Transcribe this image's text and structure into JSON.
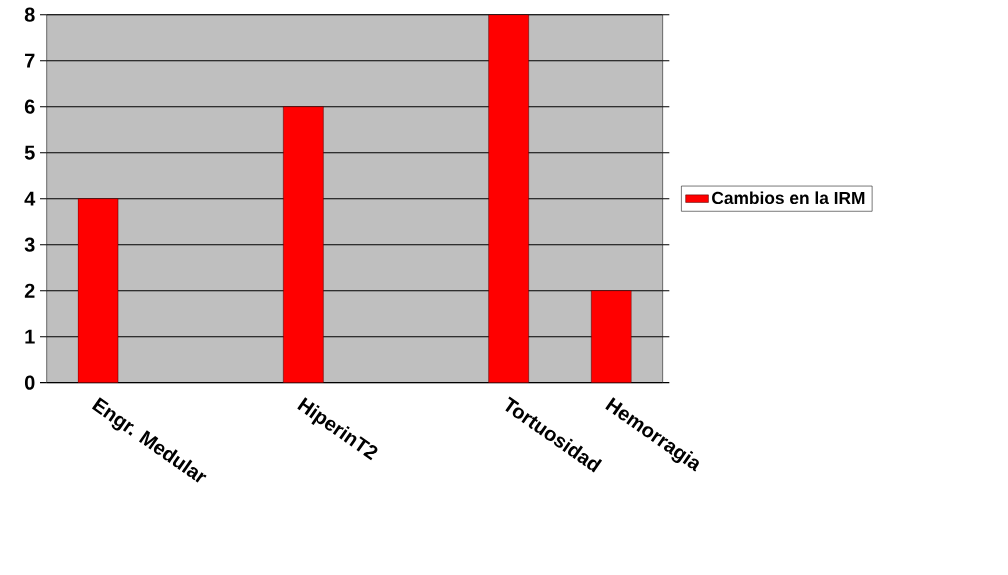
{
  "chart_data": {
    "type": "bar",
    "categories": [
      "Engr. Medular",
      null,
      "HiperinT2",
      null,
      "Tortuosidad",
      "Hemorragia"
    ],
    "series": [
      {
        "name": "Cambios en la IRM",
        "color": "#ff0000",
        "values": [
          4,
          null,
          6,
          null,
          8,
          2
        ]
      }
    ],
    "ylim": [
      0,
      8
    ],
    "yticks": [
      0,
      1,
      2,
      3,
      4,
      5,
      6,
      7,
      8
    ],
    "grid": "y",
    "legend": "right"
  }
}
